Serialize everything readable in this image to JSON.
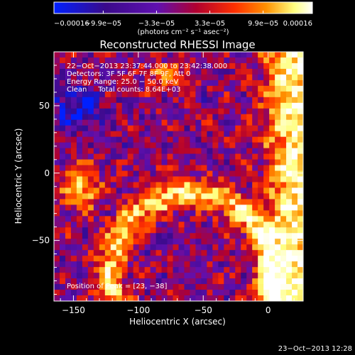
{
  "chart_data": {
    "type": "heatmap",
    "title": "Reconstructed RHESSI Image",
    "xlabel": "Heliocentric X (arcsec)",
    "ylabel": "Heliocentric Y (arcsec)",
    "xlim": [
      -165,
      27
    ],
    "ylim": [
      -95,
      90
    ],
    "x_ticks": [
      -150,
      -100,
      -50,
      0
    ],
    "y_ticks": [
      -50,
      0,
      50
    ],
    "x_tick_labels": [
      "−150",
      "−100",
      "−50",
      "0"
    ],
    "y_tick_labels": [
      "−50",
      "0",
      "50"
    ],
    "colorbar": {
      "range": [
        -0.00016,
        0.00016
      ],
      "tick_values": [
        -0.00016,
        -9.9e-05,
        -3.3e-05,
        3.3e-05,
        9.9e-05,
        0.00016
      ],
      "tick_labels": [
        "−0.00016",
        "−9.9e−05",
        "−3.3e−05",
        "3.3e−05",
        "9.9e−05",
        "0.00016"
      ],
      "unit_label": "(photons cm⁻² s⁻¹ asec⁻²)",
      "colors": [
        "#0020ff",
        "#3a0a8a",
        "#6010b0",
        "#b00030",
        "#ff3000",
        "#ff9000",
        "#ffff80",
        "#ffffff"
      ]
    },
    "annotations": {
      "time_range": "22−Oct−2013 23:37:44.000 to 23:42:38.000",
      "detectors": "Detectors: 3F 5F 6F 7F 8F 9F, Att 0",
      "energy_range": "Energy Range: 25.0 − 50.0 keV",
      "clean_counts": "Clean     Total counts: 8.64E+03",
      "peak": "Position of Peak = [23, −38]"
    },
    "peak_position": [
      23,
      -38
    ],
    "grid": false
  },
  "footer": {
    "date_stamp": "23−Oct−2013 12:28"
  }
}
